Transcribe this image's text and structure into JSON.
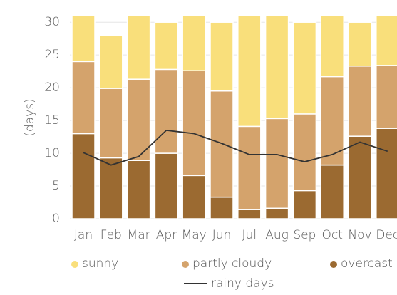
{
  "chart_data": {
    "type": "bar",
    "y_label": "(days)",
    "categories": [
      "Jan",
      "Feb",
      "Mar",
      "Apr",
      "May",
      "Jun",
      "Jul",
      "Aug",
      "Sep",
      "Oct",
      "Nov",
      "Dec"
    ],
    "series": [
      {
        "name": "overcast",
        "color": "#9b6a31",
        "values": [
          13.0,
          9.3,
          8.9,
          10.0,
          6.6,
          3.3,
          1.4,
          1.6,
          4.3,
          8.2,
          12.6,
          13.8
        ]
      },
      {
        "name": "partly cloudy",
        "color": "#d4a36c",
        "values": [
          11.0,
          10.6,
          12.4,
          12.8,
          16.0,
          16.2,
          12.7,
          13.7,
          11.7,
          13.5,
          10.7,
          9.6
        ]
      },
      {
        "name": "sunny",
        "color": "#f9df7b",
        "values": [
          7.0,
          8.1,
          9.7,
          7.2,
          8.4,
          10.5,
          16.9,
          15.7,
          14.0,
          9.3,
          6.7,
          7.6
        ]
      },
      {
        "name": "rainy days",
        "type": "line",
        "color": "#333333",
        "values": [
          10.1,
          8.2,
          9.5,
          13.5,
          13.0,
          11.5,
          9.8,
          9.8,
          8.7,
          9.8,
          11.7,
          10.3
        ]
      }
    ],
    "stacked": true,
    "ylim": [
      0,
      31
    ],
    "yticks": [
      0,
      5,
      10,
      15,
      20,
      25,
      30
    ],
    "grid": true
  }
}
